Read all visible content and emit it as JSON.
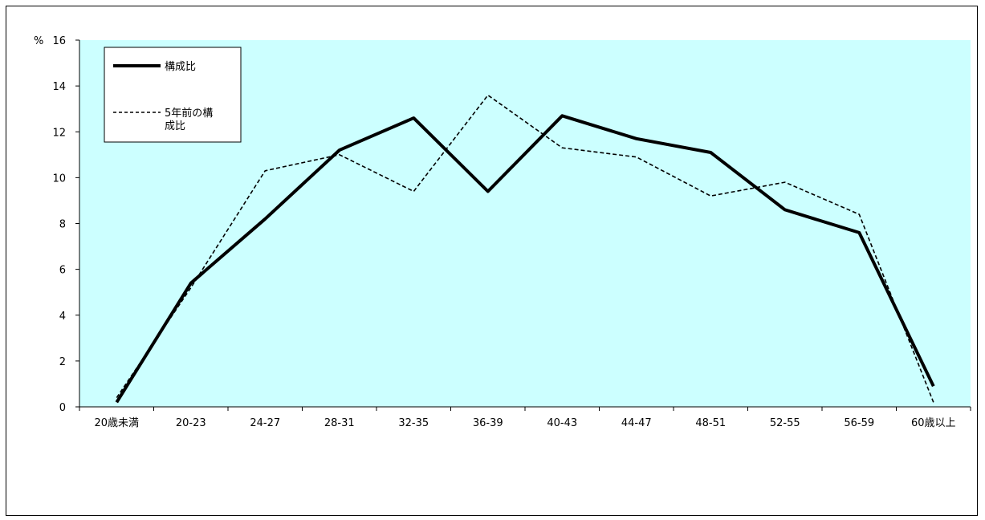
{
  "chart_data": {
    "type": "line",
    "title": "",
    "xlabel": "",
    "ylabel": "%",
    "ylim": [
      0,
      16
    ],
    "yticks": [
      0,
      2,
      4,
      6,
      8,
      10,
      12,
      14,
      16
    ],
    "categories": [
      "20歳未満",
      "20-23",
      "24-27",
      "28-31",
      "32-35",
      "36-39",
      "40-43",
      "44-47",
      "48-51",
      "52-55",
      "56-59",
      "60歳以上"
    ],
    "series": [
      {
        "name": "構成比",
        "style": "solid",
        "values": [
          0.2,
          5.4,
          8.2,
          11.2,
          12.6,
          9.4,
          12.7,
          11.7,
          11.1,
          8.6,
          7.6,
          0.9
        ]
      },
      {
        "name": "5年前の構成比",
        "style": "dashed",
        "values": [
          0.4,
          5.2,
          10.3,
          11.0,
          9.4,
          13.6,
          11.3,
          10.9,
          9.2,
          9.8,
          8.4,
          0.2
        ]
      }
    ],
    "legend": {
      "position": "top-left"
    },
    "grid": false,
    "colors": {
      "plot_bg": "#ccffff",
      "line": "#000000"
    }
  }
}
